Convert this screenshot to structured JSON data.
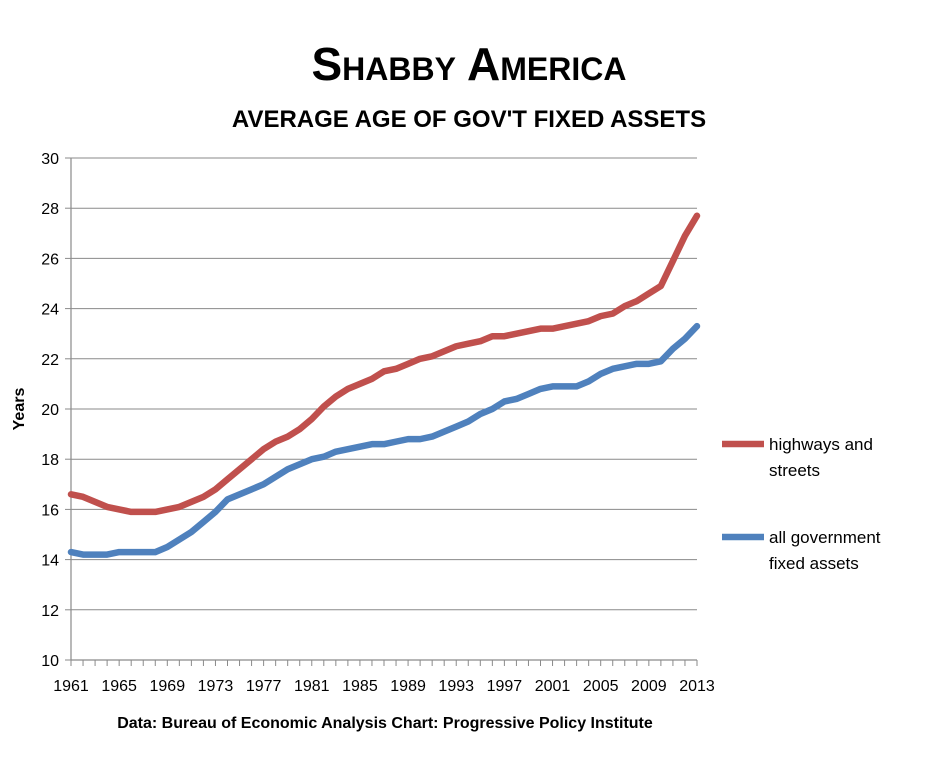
{
  "chart_data": {
    "type": "line",
    "title": "Shabby America",
    "subtitle": "AVERAGE AGE OF GOV'T FIXED ASSETS",
    "xlabel": "",
    "ylabel": "Years",
    "ylim": [
      10,
      30
    ],
    "yticks": [
      10,
      12,
      14,
      16,
      18,
      20,
      22,
      24,
      26,
      28,
      30
    ],
    "x": [
      1961,
      1962,
      1963,
      1964,
      1965,
      1966,
      1967,
      1968,
      1969,
      1970,
      1971,
      1972,
      1973,
      1974,
      1975,
      1976,
      1977,
      1978,
      1979,
      1980,
      1981,
      1982,
      1983,
      1984,
      1985,
      1986,
      1987,
      1988,
      1989,
      1990,
      1991,
      1992,
      1993,
      1994,
      1995,
      1996,
      1997,
      1998,
      1999,
      2000,
      2001,
      2002,
      2003,
      2004,
      2005,
      2006,
      2007,
      2008,
      2009,
      2010,
      2011,
      2012,
      2013
    ],
    "xticks": [
      1961,
      1965,
      1969,
      1973,
      1977,
      1981,
      1985,
      1989,
      1993,
      1997,
      2001,
      2005,
      2009,
      2013
    ],
    "grid": true,
    "legend_position": "right",
    "series": [
      {
        "name": "highways and streets",
        "color": "#C0504D",
        "values": [
          16.6,
          16.5,
          16.3,
          16.1,
          16.0,
          15.9,
          15.9,
          15.9,
          16.0,
          16.1,
          16.3,
          16.5,
          16.8,
          17.2,
          17.6,
          18.0,
          18.4,
          18.7,
          18.9,
          19.2,
          19.6,
          20.1,
          20.5,
          20.8,
          21.0,
          21.2,
          21.5,
          21.6,
          21.8,
          22.0,
          22.1,
          22.3,
          22.5,
          22.6,
          22.7,
          22.9,
          22.9,
          23.0,
          23.1,
          23.2,
          23.2,
          23.3,
          23.4,
          23.5,
          23.7,
          23.8,
          24.1,
          24.3,
          24.6,
          24.9,
          25.9,
          26.9,
          27.7
        ]
      },
      {
        "name": "all government fixed assets",
        "color": "#4F81BD",
        "values": [
          14.3,
          14.2,
          14.2,
          14.2,
          14.3,
          14.3,
          14.3,
          14.3,
          14.5,
          14.8,
          15.1,
          15.5,
          15.9,
          16.4,
          16.6,
          16.8,
          17.0,
          17.3,
          17.6,
          17.8,
          18.0,
          18.1,
          18.3,
          18.4,
          18.5,
          18.6,
          18.6,
          18.7,
          18.8,
          18.8,
          18.9,
          19.1,
          19.3,
          19.5,
          19.8,
          20.0,
          20.3,
          20.4,
          20.6,
          20.8,
          20.9,
          20.9,
          20.9,
          21.1,
          21.4,
          21.6,
          21.7,
          21.8,
          21.8,
          21.9,
          22.4,
          22.8,
          23.3
        ]
      }
    ],
    "legend_labels": [
      [
        "highways and",
        "streets"
      ],
      [
        "all government",
        "fixed assets"
      ]
    ],
    "caption": "Data: Bureau of Economic Analysis  Chart: Progressive Policy Institute"
  }
}
